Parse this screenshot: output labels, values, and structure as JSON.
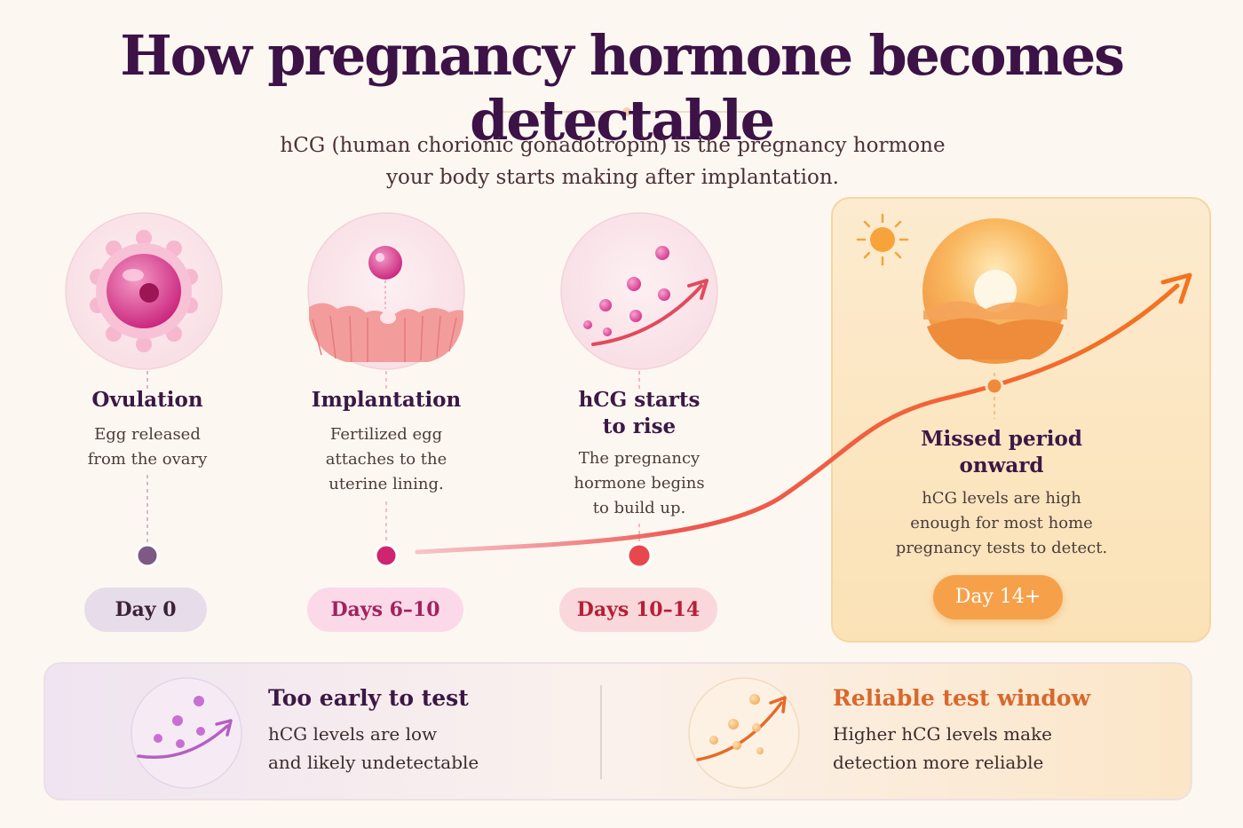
{
  "title": "How pregnancy hormone becomes detectable",
  "subtitle": {
    "line1": "hCG (human chorionic gonadotropin) is the pregnancy hormone",
    "line2": "your body starts making after implantation."
  },
  "stages": [
    {
      "title": [
        "Ovulation"
      ],
      "description": [
        "Egg released",
        "from the ovary"
      ],
      "day": "Day 0",
      "icon": "egg-cell-icon"
    },
    {
      "title": [
        "Implantation"
      ],
      "description": [
        "Fertilized egg",
        "attaches to the",
        "uterine lining."
      ],
      "day": "Days 6–10",
      "icon": "implantation-icon"
    },
    {
      "title": [
        "hCG starts",
        "to rise"
      ],
      "description": [
        "The pregnancy",
        "hormone begins",
        "to build up."
      ],
      "day": "Days 10–14",
      "icon": "rising-hormone-icon"
    },
    {
      "title": [
        "Missed period",
        "onward"
      ],
      "description": [
        "hCG levels are high",
        "enough for most home",
        "pregnancy tests to detect."
      ],
      "day": "Day 14+",
      "icon": "sunrise-icon"
    }
  ],
  "cards": {
    "early": {
      "title": "Too early to test",
      "description": [
        "hCG levels are low",
        "and likely undetectable"
      ],
      "icon": "low-hormone-icon",
      "color": "#3c1845"
    },
    "reliable": {
      "title": "Reliable test window",
      "description": [
        "Higher hCG levels make",
        "detection more reliable"
      ],
      "icon": "rising-hormone-icon",
      "color": "#d8682c"
    }
  },
  "colors": {
    "title": "#3c1247",
    "timeline_start": "#8b7a9c",
    "timeline_mid": "#cf2f7c",
    "timeline_end": "#f39a3f",
    "curve": "#f06a2e",
    "highlight_panel": "#fbe4bf"
  }
}
